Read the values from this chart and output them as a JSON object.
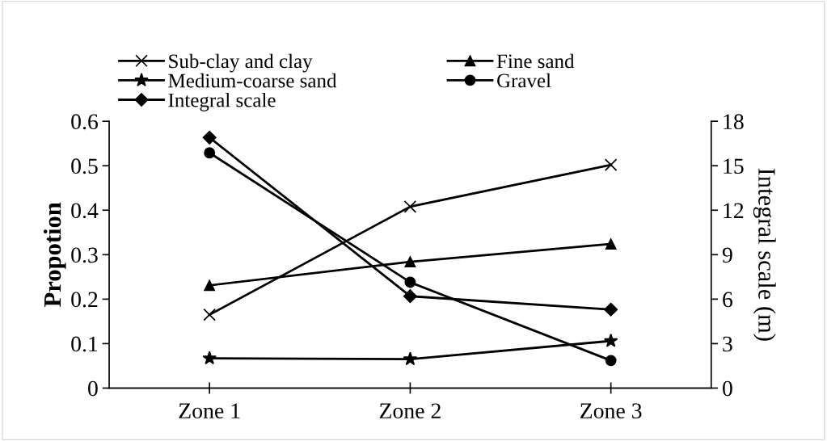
{
  "chart_data": {
    "type": "line",
    "categories": [
      "Zone 1",
      "Zone 2",
      "Zone 3"
    ],
    "ylabel": "Propotion",
    "y2label": "Integral scale (m)",
    "ylim": [
      0,
      0.6
    ],
    "yticks": [
      {
        "value": 0,
        "label": "0"
      },
      0.1,
      0.2,
      0.3,
      0.4,
      0.5,
      0.6
    ],
    "y2lim": [
      0,
      18
    ],
    "y2ticks": [
      0,
      3,
      6,
      9,
      12,
      15,
      18
    ],
    "grid": false,
    "legend": "top",
    "line_style": "solid",
    "series": [
      {
        "name": "Sub-clay and clay",
        "color": "#000000",
        "marker": "cross",
        "values": [
          0.165,
          0.408,
          0.502
        ]
      },
      {
        "name": "Fine sand",
        "color": "#000000",
        "marker": "triangle",
        "values": [
          0.231,
          0.284,
          0.324
        ]
      },
      {
        "name": "Medium-coarse sand",
        "color": "#000000",
        "marker": "star",
        "values": [
          0.067,
          0.065,
          0.106
        ]
      },
      {
        "name": "Gravel",
        "color": "#000000",
        "marker": "circle",
        "values": [
          0.529,
          0.238,
          0.062
        ]
      },
      {
        "name": "Integral scale",
        "color": "#000000",
        "marker": "diamond",
        "axis": "y2",
        "values": [
          16.9,
          6.2,
          5.3
        ]
      }
    ]
  }
}
